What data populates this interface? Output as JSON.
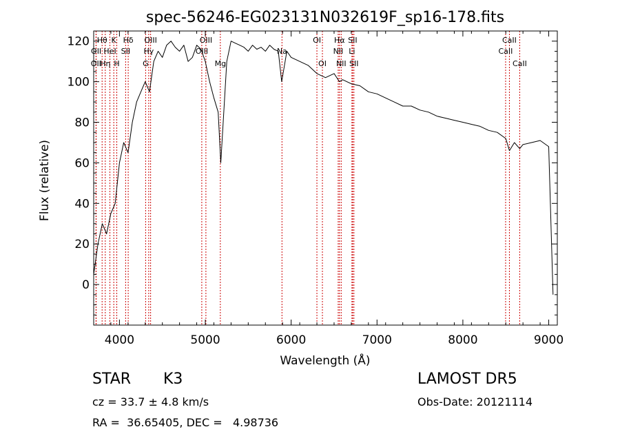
{
  "chart_data": {
    "type": "line",
    "title": "spec-56246-EG023131N032619F_sp16-178.fits",
    "xlabel": "Wavelength (Å)",
    "ylabel": "Flux (relative)",
    "xlim": [
      3700,
      9100
    ],
    "ylim": [
      -20,
      125
    ],
    "x_ticks": [
      4000,
      5000,
      6000,
      7000,
      8000,
      9000
    ],
    "y_ticks": [
      0,
      20,
      40,
      60,
      80,
      100,
      120
    ],
    "grid": false,
    "series": [
      {
        "x": [
          3700,
          3750,
          3800,
          3850,
          3900,
          3950,
          4000,
          4050,
          4100,
          4150,
          4200,
          4250,
          4300,
          4350,
          4400,
          4450,
          4500,
          4550,
          4600,
          4650,
          4700,
          4750,
          4800,
          4850,
          4900,
          4950,
          5000,
          5050,
          5100,
          5150,
          5180,
          5250,
          5300,
          5350,
          5400,
          5450,
          5500,
          5550,
          5600,
          5650,
          5700,
          5750,
          5800,
          5850,
          5890,
          5950,
          6000,
          6100,
          6200,
          6300,
          6400,
          6500,
          6562,
          6600,
          6700,
          6800,
          6900,
          7000,
          7100,
          7200,
          7300,
          7400,
          7500,
          7600,
          7700,
          7800,
          7900,
          8000,
          8100,
          8200,
          8300,
          8400,
          8500,
          8542,
          8600,
          8662,
          8700,
          8800,
          8900,
          9000,
          9050
        ],
        "y": [
          5,
          20,
          30,
          25,
          35,
          40,
          60,
          70,
          65,
          80,
          90,
          95,
          100,
          95,
          110,
          115,
          112,
          118,
          120,
          117,
          115,
          118,
          110,
          112,
          118,
          116,
          110,
          100,
          92,
          85,
          60,
          110,
          120,
          119,
          118,
          117,
          115,
          118,
          116,
          117,
          115,
          118,
          116,
          115,
          100,
          115,
          112,
          110,
          108,
          104,
          102,
          104,
          100,
          101,
          99,
          98,
          95,
          94,
          92,
          90,
          88,
          88,
          86,
          85,
          83,
          82,
          81,
          80,
          79,
          78,
          76,
          75,
          72,
          66,
          70,
          67,
          69,
          70,
          71,
          68,
          -5
        ]
      }
    ],
    "lines": [
      {
        "name": "OII",
        "x": 3727,
        "row": 3
      },
      {
        "name": "OII",
        "x": 3729,
        "row": 2
      },
      {
        "name": "Hθ",
        "x": 3798,
        "row": 1
      },
      {
        "name": "Hη",
        "x": 3835,
        "row": 3
      },
      {
        "name": "HeI",
        "x": 3889,
        "row": 2
      },
      {
        "name": "K",
        "x": 3934,
        "row": 1
      },
      {
        "name": "H",
        "x": 3969,
        "row": 3
      },
      {
        "name": "SII",
        "x": 4072,
        "row": 2
      },
      {
        "name": "Hδ",
        "x": 4102,
        "row": 1
      },
      {
        "name": "G",
        "x": 4305,
        "row": 3
      },
      {
        "name": "Hγ",
        "x": 4341,
        "row": 2
      },
      {
        "name": "OIII",
        "x": 4363,
        "row": 1
      },
      {
        "name": "OIII",
        "x": 4959,
        "row": 2
      },
      {
        "name": "OIII",
        "x": 5007,
        "row": 1
      },
      {
        "name": "Mg",
        "x": 5175,
        "row": 3
      },
      {
        "name": "Na",
        "x": 5893,
        "row": 2
      },
      {
        "name": "OI",
        "x": 6300,
        "row": 1
      },
      {
        "name": "OI",
        "x": 6364,
        "row": 3
      },
      {
        "name": "NII",
        "x": 6548,
        "row": 2
      },
      {
        "name": "Hα",
        "x": 6563,
        "row": 1
      },
      {
        "name": "NII",
        "x": 6583,
        "row": 3
      },
      {
        "name": "Li",
        "x": 6708,
        "row": 2
      },
      {
        "name": "SII",
        "x": 6716,
        "row": 1
      },
      {
        "name": "SII",
        "x": 6731,
        "row": 3
      },
      {
        "name": "CaII",
        "x": 8498,
        "row": 2
      },
      {
        "name": "CaII",
        "x": 8542,
        "row": 1
      },
      {
        "name": "CaII",
        "x": 8662,
        "row": 3
      }
    ],
    "line_color": "#cc0000",
    "data_color": "#000000"
  },
  "footer": {
    "obj_class": "STAR",
    "obj_subclass": "K3",
    "survey": "LAMOST DR5",
    "redshift": "cz = 33.7 ± 4.8 km/s",
    "obsdate": "Obs-Date: 20121114",
    "coords": "RA =  36.65405, DEC =   4.98736"
  }
}
